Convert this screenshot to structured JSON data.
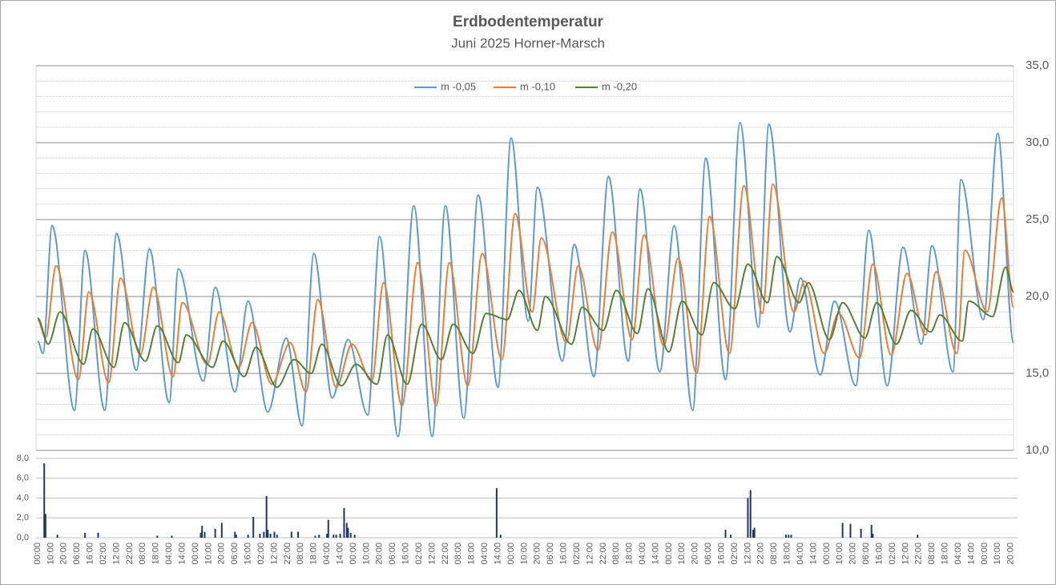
{
  "chart_data": [
    {
      "type": "line",
      "title": "Erdbodentemperatur",
      "subtitle": "Juni 2025 Horner-Marsch",
      "xlim": [
        0,
        742
      ],
      "ylim": [
        10,
        35
      ],
      "yaxis_side": "right",
      "legend": "top",
      "grid": true,
      "yticks": [
        {
          "value": 10,
          "label": "10,0"
        },
        {
          "value": 15,
          "label": "15,0"
        },
        {
          "value": 20,
          "label": "20,0"
        },
        {
          "value": 25,
          "label": "25,0"
        },
        {
          "value": 30,
          "label": "30,0"
        },
        {
          "value": 35,
          "label": "35,0"
        }
      ],
      "yminorticks": [
        11,
        12,
        13,
        14,
        16,
        17,
        18,
        19,
        21,
        22,
        23,
        24,
        26,
        27,
        28,
        29,
        31,
        32,
        33,
        34
      ],
      "series": [
        {
          "name": "m -0,05",
          "color": "#5b9bd5",
          "x": [
            0,
            4,
            11,
            28,
            36,
            51,
            60,
            75,
            85,
            100,
            107,
            126,
            135,
            150,
            160,
            175,
            189,
            201,
            210,
            224,
            236,
            251,
            260,
            274,
            286,
            300,
            310,
            324,
            335,
            350,
            360,
            373,
            380,
            399,
            408,
            423,
            434,
            449,
            458,
            473,
            484,
            498,
            508,
            523,
            534,
            548,
            556,
            572,
            580,
            595,
            606,
            622,
            632,
            646,
            658,
            672,
            680,
            696,
            702,
            719,
            730,
            742
          ],
          "values": [
            17.1,
            16.3,
            24.6,
            12.6,
            23,
            12.6,
            24.1,
            15.2,
            23.1,
            13.1,
            21.8,
            14.5,
            20.6,
            13.8,
            19.7,
            12.5,
            17.3,
            11.6,
            22.8,
            13.4,
            17.2,
            12.3,
            23.9,
            10.9,
            25.9,
            10.9,
            25.9,
            12.1,
            26.6,
            14.1,
            30.3,
            18.4,
            27.1,
            15.8,
            23.4,
            14.8,
            27.8,
            15.8,
            27,
            15.1,
            24.6,
            12.6,
            29,
            14.6,
            31.3,
            18,
            31.2,
            17.7,
            21.2,
            14.9,
            19.7,
            14.2,
            24.3,
            14.2,
            23.2,
            16.9,
            23.3,
            15.1,
            27.6,
            18.5,
            30.6,
            17
          ]
        },
        {
          "name": "m -0,10",
          "color": "#ed7d31",
          "x": [
            0,
            6,
            14,
            31,
            39,
            54,
            63,
            78,
            88,
            103,
            110,
            129,
            138,
            153,
            163,
            178,
            192,
            204,
            213,
            227,
            239,
            254,
            263,
            277,
            289,
            303,
            313,
            327,
            338,
            353,
            363,
            376,
            383,
            402,
            411,
            426,
            437,
            452,
            461,
            476,
            487,
            501,
            511,
            526,
            537,
            551,
            559,
            575,
            583,
            598,
            609,
            625,
            635,
            649,
            661,
            675,
            683,
            699,
            705,
            722,
            733,
            742
          ],
          "values": [
            18.5,
            17.3,
            22,
            14.6,
            20.3,
            14.4,
            21.2,
            16.2,
            20.6,
            14.8,
            19.6,
            15.6,
            19,
            15.4,
            18.3,
            14.3,
            17,
            13.8,
            19.8,
            14.1,
            16.9,
            14.5,
            20.9,
            12.9,
            22.2,
            12.9,
            22.2,
            14.2,
            22.8,
            15.9,
            25.4,
            19,
            23.8,
            17,
            22,
            16.5,
            24.2,
            17.2,
            24,
            16.8,
            22.5,
            15,
            25.2,
            16.3,
            27.2,
            18.9,
            27.3,
            19,
            21,
            16.3,
            18.9,
            16,
            22.1,
            16.2,
            21.5,
            17.5,
            21.6,
            16.3,
            23,
            19,
            26.4,
            19.3
          ]
        },
        {
          "name": "m -0,20",
          "color": "#548235",
          "x": [
            0,
            8,
            17,
            35,
            42,
            58,
            66,
            82,
            91,
            107,
            113,
            133,
            141,
            157,
            166,
            182,
            195,
            208,
            216,
            231,
            242,
            258,
            266,
            281,
            292,
            307,
            316,
            331,
            341,
            357,
            366,
            380,
            386,
            406,
            414,
            430,
            440,
            456,
            464,
            480,
            490,
            505,
            514,
            530,
            540,
            555,
            562,
            579,
            586,
            602,
            612,
            629,
            638,
            653,
            664,
            679,
            686,
            703,
            708,
            726,
            736,
            742
          ],
          "values": [
            18.6,
            16.9,
            19,
            15.6,
            17.9,
            15.4,
            18.3,
            15.8,
            18.1,
            15.7,
            17.5,
            15.4,
            17.1,
            14.8,
            16.7,
            14.1,
            15.9,
            15,
            16.9,
            14.2,
            15.6,
            14.3,
            17.5,
            14.3,
            18.2,
            15.9,
            18.2,
            16.3,
            18.9,
            18.5,
            20.4,
            17.8,
            20,
            16.9,
            19.3,
            17.8,
            20.4,
            17.6,
            20.5,
            16.4,
            19.7,
            17.5,
            20.9,
            19.2,
            22.1,
            19.6,
            22.6,
            19.6,
            20.9,
            17.2,
            19.6,
            17.3,
            19.6,
            16.9,
            19.1,
            17.7,
            18.8,
            17.1,
            19.7,
            18.7,
            21.9,
            20.3
          ]
        }
      ]
    },
    {
      "type": "bar",
      "xlim": [
        0,
        742
      ],
      "ylim": [
        0,
        8
      ],
      "color": "#1f3864",
      "grid": true,
      "yticks": [
        {
          "value": 0,
          "label": "0,0"
        },
        {
          "value": 2,
          "label": "2,0"
        },
        {
          "value": 4,
          "label": "4,0"
        },
        {
          "value": 6,
          "label": "6,0"
        },
        {
          "value": 8,
          "label": "8,0"
        }
      ],
      "x": [
        5,
        6,
        15,
        36,
        46,
        91,
        102,
        124,
        125,
        127,
        135,
        140,
        150,
        151,
        160,
        164,
        169,
        172,
        174,
        175,
        177,
        180,
        182,
        193,
        198,
        211,
        214,
        220,
        221,
        225,
        227,
        230,
        233,
        235,
        236,
        238,
        241,
        349,
        352,
        523,
        527,
        540,
        542,
        544,
        545,
        569,
        571,
        573,
        612,
        618,
        626,
        634,
        635,
        669
      ],
      "values": [
        7.5,
        2.4,
        0.3,
        0.5,
        0.5,
        0.2,
        0.2,
        0.5,
        1.2,
        0.6,
        0.9,
        1.5,
        0.6,
        0.3,
        0.3,
        2.1,
        0.4,
        0.6,
        4.2,
        0.8,
        0.4,
        0.6,
        0.3,
        0.6,
        0.6,
        0.2,
        0.3,
        0.4,
        1.8,
        0.3,
        0.3,
        0.4,
        3,
        1.5,
        1,
        0.5,
        0.3,
        5,
        0.3,
        0.8,
        0.3,
        4,
        4.8,
        0.8,
        1,
        0.3,
        0.3,
        0.3,
        1.5,
        1.4,
        0.9,
        1.3,
        0.4,
        0.3
      ],
      "xticks": [
        {
          "value": 0,
          "label": "00:00"
        },
        {
          "value": 10,
          "label": "10:00"
        },
        {
          "value": 20,
          "label": "20:00"
        },
        {
          "value": 30,
          "label": "06:00"
        },
        {
          "value": 40,
          "label": "16:00"
        },
        {
          "value": 50,
          "label": "02:00"
        },
        {
          "value": 60,
          "label": "12:00"
        },
        {
          "value": 70,
          "label": "22:00"
        },
        {
          "value": 80,
          "label": "08:00"
        },
        {
          "value": 90,
          "label": "18:00"
        },
        {
          "value": 100,
          "label": "04:00"
        },
        {
          "value": 110,
          "label": "14:00"
        },
        {
          "value": 120,
          "label": "00:00"
        },
        {
          "value": 130,
          "label": "10:00"
        },
        {
          "value": 140,
          "label": "20:00"
        },
        {
          "value": 150,
          "label": "06:00"
        },
        {
          "value": 160,
          "label": "16:00"
        },
        {
          "value": 170,
          "label": "02:00"
        },
        {
          "value": 180,
          "label": "12:00"
        },
        {
          "value": 190,
          "label": "22:00"
        },
        {
          "value": 200,
          "label": "08:00"
        },
        {
          "value": 210,
          "label": "18:00"
        },
        {
          "value": 220,
          "label": "04:00"
        },
        {
          "value": 230,
          "label": "14:00"
        },
        {
          "value": 240,
          "label": "00:00"
        },
        {
          "value": 250,
          "label": "10:00"
        },
        {
          "value": 260,
          "label": "20:00"
        },
        {
          "value": 270,
          "label": "06:00"
        },
        {
          "value": 280,
          "label": "16:00"
        },
        {
          "value": 290,
          "label": "02:00"
        },
        {
          "value": 300,
          "label": "12:00"
        },
        {
          "value": 310,
          "label": "22:00"
        },
        {
          "value": 320,
          "label": "08:00"
        },
        {
          "value": 330,
          "label": "18:00"
        },
        {
          "value": 340,
          "label": "04:00"
        },
        {
          "value": 350,
          "label": "14:00"
        },
        {
          "value": 360,
          "label": "00:00"
        },
        {
          "value": 370,
          "label": "10:00"
        },
        {
          "value": 380,
          "label": "20:00"
        },
        {
          "value": 390,
          "label": "06:00"
        },
        {
          "value": 400,
          "label": "16:00"
        },
        {
          "value": 410,
          "label": "02:00"
        },
        {
          "value": 420,
          "label": "12:00"
        },
        {
          "value": 430,
          "label": "22:00"
        },
        {
          "value": 440,
          "label": "08:00"
        },
        {
          "value": 450,
          "label": "18:00"
        },
        {
          "value": 460,
          "label": "04:00"
        },
        {
          "value": 470,
          "label": "14:00"
        },
        {
          "value": 480,
          "label": "00:00"
        },
        {
          "value": 490,
          "label": "10:00"
        },
        {
          "value": 500,
          "label": "20:00"
        },
        {
          "value": 510,
          "label": "06:00"
        },
        {
          "value": 520,
          "label": "16:00"
        },
        {
          "value": 530,
          "label": "02:00"
        },
        {
          "value": 540,
          "label": "12:00"
        },
        {
          "value": 550,
          "label": "22:00"
        },
        {
          "value": 560,
          "label": "08:00"
        },
        {
          "value": 570,
          "label": "18:00"
        },
        {
          "value": 580,
          "label": "04:00"
        },
        {
          "value": 590,
          "label": "14:00"
        },
        {
          "value": 600,
          "label": "00:00"
        },
        {
          "value": 610,
          "label": "10:00"
        },
        {
          "value": 620,
          "label": "20:00"
        },
        {
          "value": 630,
          "label": "06:00"
        },
        {
          "value": 640,
          "label": "16:00"
        },
        {
          "value": 650,
          "label": "02:00"
        },
        {
          "value": 660,
          "label": "12:00"
        },
        {
          "value": 670,
          "label": "22:00"
        },
        {
          "value": 680,
          "label": "08:00"
        },
        {
          "value": 690,
          "label": "18:00"
        },
        {
          "value": 700,
          "label": "04:00"
        },
        {
          "value": 710,
          "label": "14:00"
        },
        {
          "value": 720,
          "label": "00:00"
        },
        {
          "value": 730,
          "label": "10:00"
        },
        {
          "value": 740,
          "label": "20:00"
        }
      ]
    }
  ]
}
